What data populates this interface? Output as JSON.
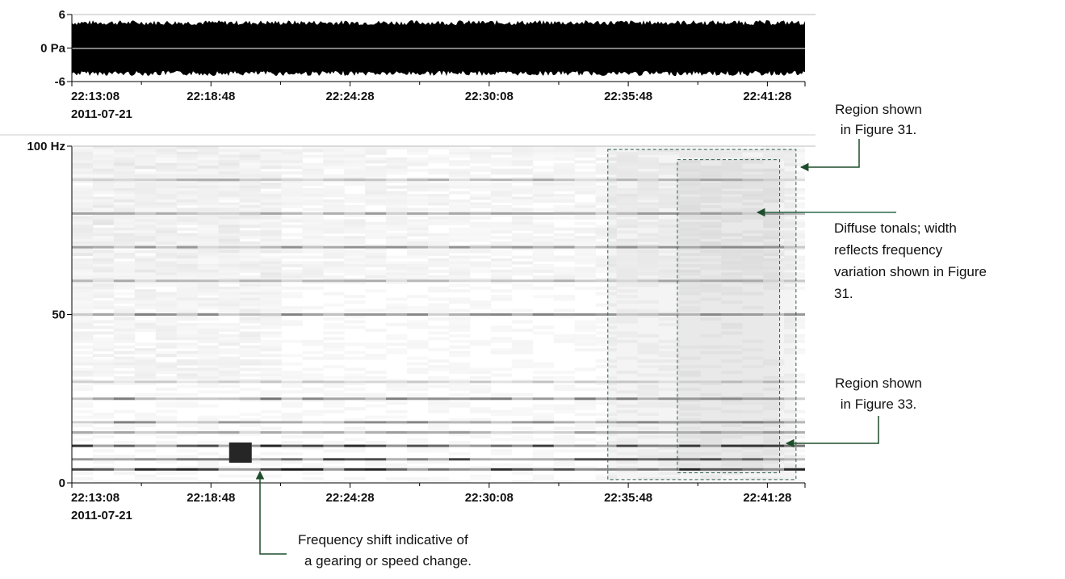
{
  "chart_data": [
    {
      "type": "line",
      "panel": "waveform",
      "y_ticks": [
        {
          "value": 6,
          "label": "6"
        },
        {
          "value": 0,
          "label": "0 Pa"
        },
        {
          "value": -6,
          "label": "-6"
        }
      ],
      "ylim": [
        -6,
        6
      ],
      "x_ticks": [
        "22:13:08",
        "22:18:48",
        "22:24:28",
        "22:30:08",
        "22:35:48",
        "22:41:28"
      ],
      "date_label": "2011-07-21",
      "xlim": [
        "22:13:08",
        "22:43:00"
      ],
      "series": [
        {
          "envelope_amplitude_pa": 5.0
        }
      ],
      "color": "#000000"
    },
    {
      "type": "heatmap",
      "panel": "spectrogram",
      "y_ticks": [
        {
          "value": 100,
          "label": "100 Hz"
        },
        {
          "value": 50,
          "label": "50"
        },
        {
          "value": 0,
          "label": "0"
        }
      ],
      "ylim": [
        0,
        100
      ],
      "x_ticks": [
        "22:13:08",
        "22:18:48",
        "22:24:28",
        "22:30:08",
        "22:35:48",
        "22:41:28"
      ],
      "date_label": "2011-07-21",
      "xlim": [
        "22:13:08",
        "22:43:00"
      ],
      "tonal_bands_hz": [
        {
          "freq": 90,
          "intensity": 0.35
        },
        {
          "freq": 80,
          "intensity": 0.4
        },
        {
          "freq": 70,
          "intensity": 0.45
        },
        {
          "freq": 60,
          "intensity": 0.35
        },
        {
          "freq": 50,
          "intensity": 0.5
        },
        {
          "freq": 30,
          "intensity": 0.25
        },
        {
          "freq": 25,
          "intensity": 0.55
        },
        {
          "freq": 18,
          "intensity": 0.5
        },
        {
          "freq": 15,
          "intensity": 0.4
        },
        {
          "freq": 11,
          "intensity": 0.85
        },
        {
          "freq": 7,
          "intensity": 0.75
        },
        {
          "freq": 4,
          "intensity": 0.9
        }
      ],
      "shift_event": {
        "time": "22:20:00",
        "freq_range_hz": [
          6,
          12
        ],
        "intensity": 1.0
      },
      "colormap": [
        "#ffffff",
        "#000000"
      ],
      "highlight_regions": [
        {
          "name": "figure-31",
          "t_start": "22:34:58",
          "t_end": "22:42:38",
          "f_low": 1,
          "f_high": 99
        },
        {
          "name": "figure-33",
          "t_start": "22:37:48",
          "t_end": "22:41:58",
          "f_low": 3,
          "f_high": 96
        }
      ],
      "annotations": {
        "region31": [
          "Region shown",
          "in Figure 31."
        ],
        "diffuse": [
          "Diffuse tonals; width",
          "reflects frequency",
          "variation shown in Figure",
          "31."
        ],
        "region33": [
          "Region shown",
          "in Figure 33."
        ],
        "shift": [
          "Frequency shift indicative of",
          "a gearing or speed change."
        ]
      }
    }
  ],
  "colors": {
    "arrow": "#1e4d2b",
    "region_border": "#2e5d4a",
    "axis": "#000000"
  }
}
